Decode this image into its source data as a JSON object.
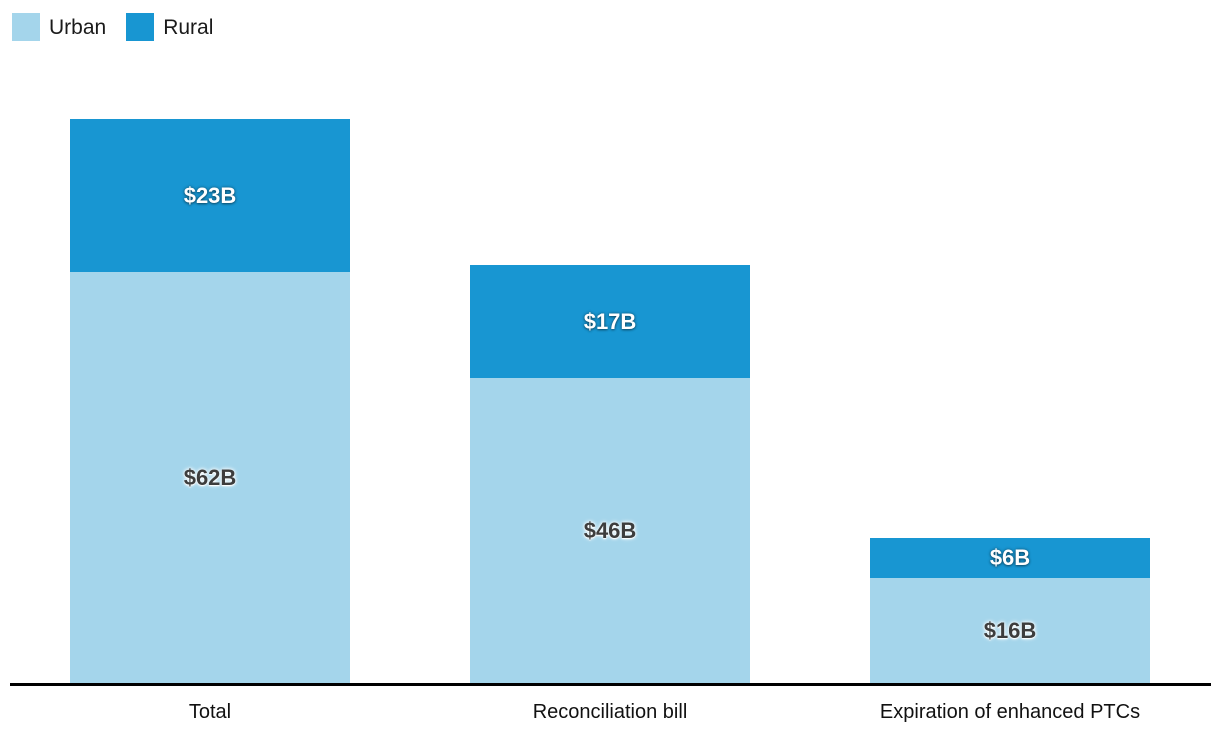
{
  "legend": {
    "items": [
      {
        "label": "Urban",
        "color": "#A4D5EB"
      },
      {
        "label": "Rural",
        "color": "#1896D2"
      }
    ]
  },
  "chart_data": {
    "type": "bar",
    "variant": "stacked-vertical",
    "title": "",
    "categories": [
      "Total",
      "Reconciliation bill",
      "Expiration of enhanced PTCs"
    ],
    "series": [
      {
        "name": "Urban",
        "color": "#A4D5EB",
        "values": [
          62,
          46,
          16
        ]
      },
      {
        "name": "Rural",
        "color": "#1896D2",
        "values": [
          23,
          17,
          6
        ]
      }
    ],
    "stack_totals": [
      85,
      63,
      22
    ],
    "value_labels": {
      "urban": [
        "$62B",
        "$46B",
        "$16B"
      ],
      "rural": [
        "$23B",
        "$17B",
        "$6B"
      ]
    },
    "unit": "$B",
    "axis": {
      "baseline_color": "#000000",
      "gridlines": false,
      "y_axis_visible": false
    },
    "legend_position": "top-left"
  }
}
